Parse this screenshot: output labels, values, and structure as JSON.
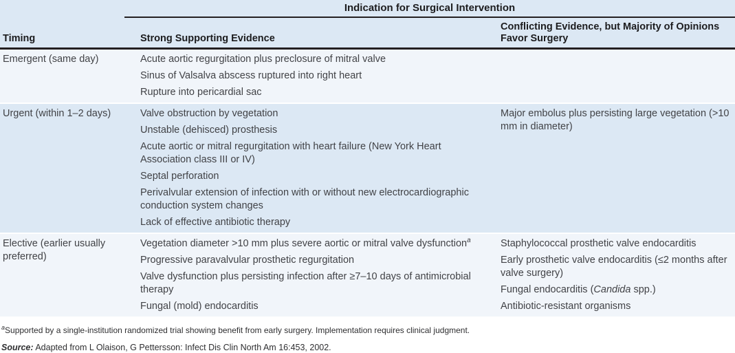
{
  "colors": {
    "band_blue": "#dce8f4",
    "band_light": "#f1f5fa",
    "rule": "#231f20",
    "body_text": "#414246",
    "heading_text": "#1c1c1e"
  },
  "table": {
    "span_header": "Indication for Surgical Intervention",
    "columns": [
      "Timing",
      "Strong Supporting Evidence",
      "Conflicting Evidence, but Majority of Opinions Favor Surgery"
    ],
    "rows": [
      {
        "timing": "Emergent (same day)",
        "strong_evidence": [
          "Acute aortic regurgitation plus preclosure of mitral valve",
          "Sinus of Valsalva abscess ruptured into right heart",
          "Rupture into pericardial sac"
        ],
        "conflicting_evidence": []
      },
      {
        "timing": "Urgent (within 1–2 days)",
        "strong_evidence": [
          "Valve obstruction by vegetation",
          "Unstable (dehisced) prosthesis",
          "Acute aortic or mitral regurgitation with heart failure (New York Heart Association class III or IV)",
          "Septal perforation",
          "Perivalvular extension of infection with or without new electrocardiographic conduction system changes",
          "Lack of effective antibiotic therapy"
        ],
        "conflicting_evidence": [
          "Major embolus plus persisting large vegetation (>10 mm in diameter)"
        ]
      },
      {
        "timing": "Elective (earlier usually preferred)",
        "strong_evidence": [
          "Vegetation diameter >10 mm plus severe aortic or mitral valve dysfunction^a",
          "Progressive paravalvular prosthetic regurgitation",
          "Valve dysfunction plus persisting infection after ≥7–10 days of antimicrobial therapy",
          "Fungal (mold) endocarditis"
        ],
        "conflicting_evidence": [
          "Staphylococcal prosthetic valve endocarditis",
          "Early prosthetic valve endocarditis (≤2 months after valve surgery)",
          "Fungal endocarditis (*Candida* spp.)",
          "Antibiotic-resistant organisms"
        ]
      }
    ],
    "footnote_marker": "a",
    "footnote": "Supported by a single-institution randomized trial showing benefit from early surgery. Implementation requires clinical judgment.",
    "source_label": "Source:",
    "source_text": "Adapted from L Olaison, G Pettersson: Infect Dis Clin North Am 16:453, 2002."
  }
}
